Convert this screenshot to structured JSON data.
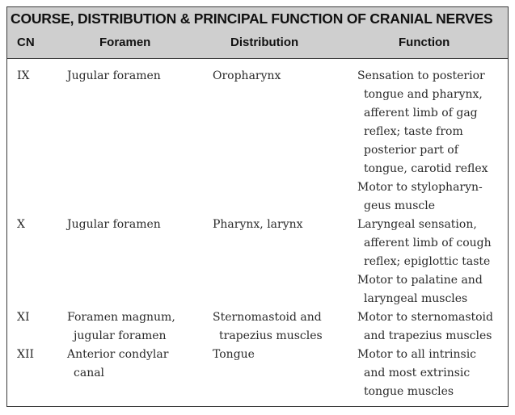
{
  "table": {
    "title": "COURSE, DISTRIBUTION & PRINCIPAL FUNCTION OF CRANIAL NERVES",
    "headers": {
      "cn": "CN",
      "foramen": "Foramen",
      "distribution": "Distribution",
      "function": "Function"
    },
    "rows": [
      {
        "cn": "IX",
        "foramen": [
          "Jugular foramen"
        ],
        "distribution": [
          "Oropharynx"
        ],
        "function": [
          "Sensation to posterior",
          "tongue and pharynx,",
          "afferent limb of gag",
          "reflex; taste from",
          "posterior part of",
          "tongue, carotid reflex",
          "Motor to stylopharyn-",
          "geus muscle"
        ]
      },
      {
        "cn": "X",
        "foramen": [
          "Jugular foramen"
        ],
        "distribution": [
          "Pharynx, larynx"
        ],
        "function": [
          "Laryngeal sensation,",
          "afferent limb of cough",
          "reflex; epiglottic taste",
          "Motor to palatine and",
          "laryngeal muscles"
        ]
      },
      {
        "cn": "XI",
        "foramen": [
          "Foramen magnum,",
          "jugular foramen"
        ],
        "distribution": [
          "Sternomastoid and",
          "trapezius muscles"
        ],
        "function": [
          "Motor to sternomastoid",
          "and trapezius muscles"
        ]
      },
      {
        "cn": "XII",
        "foramen": [
          "Anterior condylar",
          "canal"
        ],
        "distribution": [
          "Tongue"
        ],
        "function": [
          "Motor to all intrinsic",
          "and most extrinsic",
          "tongue muscles"
        ]
      }
    ]
  }
}
